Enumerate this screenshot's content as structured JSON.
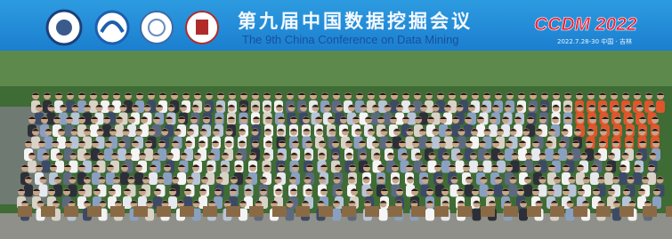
{
  "banner": {
    "title_cn": "第九届中国数据挖掘会议",
    "title_en": "The 9th China Conference on Data Mining",
    "brand": "CCDM 2022",
    "date_place": "2022.7.28-30  中国 · 吉林"
  }
}
